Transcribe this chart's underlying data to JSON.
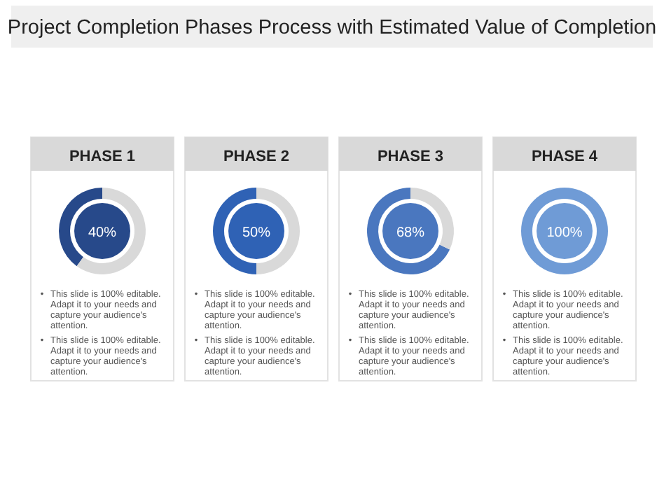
{
  "chart_data": [
    {
      "type": "other",
      "title": "Project Completion Phases Process with Estimated Value of Completion"
    },
    {
      "type": "donut",
      "title": "PHASE 1",
      "categories": [
        null,
        null
      ],
      "values": [
        40,
        60
      ],
      "colors": [
        "#27498a",
        "#d9d9d9"
      ],
      "annotations": [
        "40%",
        "This slide is 100% editable. Adapt it to your needs and capture your audience's attention.",
        "This slide is 100% editable. Adapt it to your needs and capture your audience's attention."
      ]
    },
    {
      "type": "donut",
      "title": "PHASE 2",
      "categories": [
        null,
        null
      ],
      "values": [
        50,
        50
      ],
      "colors": [
        "#2f62b5",
        "#d9d9d9"
      ],
      "annotations": [
        "50%",
        "This slide is 100% editable. Adapt it to your needs and capture your audience's attention.",
        "This slide is 100% editable. Adapt it to your needs and capture your audience's attention."
      ]
    },
    {
      "type": "donut",
      "title": "PHASE 3",
      "categories": [
        null,
        null
      ],
      "values": [
        68,
        32
      ],
      "colors": [
        "#4a77bf",
        "#d9d9d9"
      ],
      "annotations": [
        "68%",
        "This slide is 100% editable. Adapt it to your needs and capture your audience's attention.",
        "This slide is 100% editable. Adapt it to your needs and capture your audience's attention."
      ]
    },
    {
      "type": "donut",
      "title": "PHASE 4",
      "categories": [
        null
      ],
      "values": [
        100
      ],
      "colors": [
        "#6f9bd6"
      ],
      "annotations": [
        "100%",
        "This slide is 100% editable. Adapt it to your needs and capture your audience's attention.",
        "This slide is 100% editable. Adapt it to your needs and capture your audience's attention."
      ]
    }
  ]
}
